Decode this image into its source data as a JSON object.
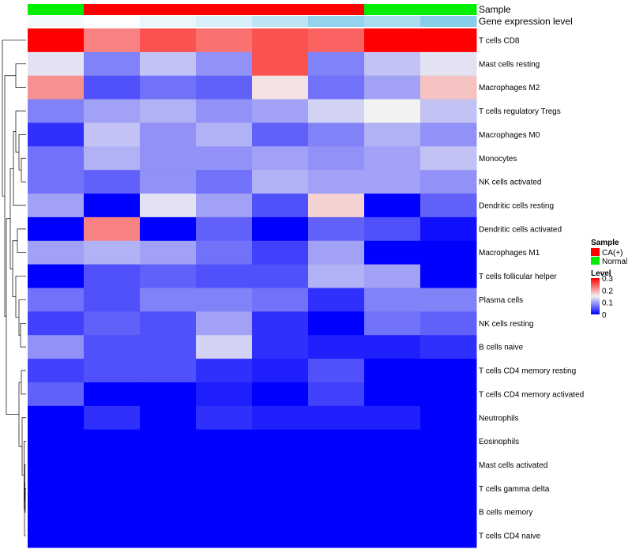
{
  "chart_data": {
    "type": "heatmap",
    "annotation_labels": {
      "sample": "Sample",
      "gene_expression": "Gene expression level"
    },
    "columns": [
      {
        "sample": "Normal",
        "gene_expression": 0.1
      },
      {
        "sample": "CA(+)",
        "gene_expression": 0.02
      },
      {
        "sample": "CA(+)",
        "gene_expression": 0.18
      },
      {
        "sample": "CA(+)",
        "gene_expression": 0.32
      },
      {
        "sample": "CA(+)",
        "gene_expression": 0.55
      },
      {
        "sample": "CA(+)",
        "gene_expression": 0.9
      },
      {
        "sample": "Normal",
        "gene_expression": 0.7
      },
      {
        "sample": "Normal",
        "gene_expression": 1.0
      }
    ],
    "rows": [
      "T cells CD8",
      "Mast cells resting",
      "Macrophages M2",
      "T cells regulatory  Tregs",
      "Macrophages M0",
      "Monocytes",
      "NK cells activated",
      "Dendritic cells resting",
      "Dendritic cells activated",
      "Macrophages M1",
      "T cells follicular helper",
      "Plasma cells",
      "NK cells resting",
      "B cells naive",
      "T cells CD4 memory resting",
      "T cells CD4 memory activated",
      "Neutrophils",
      "Eosinophils",
      "Mast cells activated",
      "T cells gamma delta",
      "B cells memory",
      "T cells CD4 naive"
    ],
    "values": [
      [
        0.3,
        0.22,
        0.25,
        0.23,
        0.25,
        0.24,
        0.3,
        0.3
      ],
      [
        0.14,
        0.08,
        0.12,
        0.09,
        0.25,
        0.08,
        0.12,
        0.14
      ],
      [
        0.21,
        0.05,
        0.07,
        0.06,
        0.16,
        0.07,
        0.1,
        0.18
      ],
      [
        0.08,
        0.1,
        0.11,
        0.09,
        0.1,
        0.13,
        0.15,
        0.12
      ],
      [
        0.03,
        0.12,
        0.09,
        0.11,
        0.06,
        0.08,
        0.11,
        0.09
      ],
      [
        0.07,
        0.11,
        0.09,
        0.09,
        0.1,
        0.09,
        0.1,
        0.12
      ],
      [
        0.07,
        0.06,
        0.09,
        0.07,
        0.11,
        0.1,
        0.1,
        0.09
      ],
      [
        0.1,
        0.0,
        0.14,
        0.1,
        0.05,
        0.17,
        0.0,
        0.06
      ],
      [
        0.0,
        0.22,
        0.0,
        0.06,
        0.0,
        0.06,
        0.05,
        0.01
      ],
      [
        0.1,
        0.11,
        0.1,
        0.07,
        0.04,
        0.1,
        0.0,
        0.0
      ],
      [
        0.0,
        0.05,
        0.06,
        0.05,
        0.05,
        0.11,
        0.1,
        0.0
      ],
      [
        0.07,
        0.05,
        0.08,
        0.08,
        0.07,
        0.03,
        0.08,
        0.08
      ],
      [
        0.04,
        0.06,
        0.05,
        0.1,
        0.03,
        0.0,
        0.07,
        0.06
      ],
      [
        0.09,
        0.05,
        0.05,
        0.13,
        0.03,
        0.02,
        0.02,
        0.03
      ],
      [
        0.04,
        0.05,
        0.05,
        0.03,
        0.02,
        0.05,
        0.0,
        0.0
      ],
      [
        0.06,
        0.0,
        0.0,
        0.02,
        0.0,
        0.04,
        0.0,
        0.0
      ],
      [
        0.0,
        0.03,
        0.0,
        0.03,
        0.02,
        0.02,
        0.02,
        0.0
      ],
      [
        0.0,
        0.0,
        0.0,
        0.0,
        0.0,
        0.0,
        0.0,
        0.0
      ],
      [
        0.0,
        0.0,
        0.0,
        0.0,
        0.0,
        0.0,
        0.0,
        0.0
      ],
      [
        0.0,
        0.0,
        0.0,
        0.0,
        0.0,
        0.0,
        0.0,
        0.0
      ],
      [
        0.0,
        0.0,
        0.0,
        0.0,
        0.0,
        0.0,
        0.0,
        0.0
      ],
      [
        0.0,
        0.0,
        0.0,
        0.0,
        0.0,
        0.0,
        0.0,
        0.0
      ]
    ],
    "color_scale": {
      "stops": [
        {
          "value": 0.0,
          "color": "#0000ff"
        },
        {
          "value": 0.15,
          "color": "#f2f2f2"
        },
        {
          "value": 0.3,
          "color": "#ff0000"
        }
      ],
      "range": [
        0,
        0.3
      ]
    },
    "gene_expression_scale": {
      "low": "#ffffff",
      "high": "#87ceeb"
    },
    "sample_colors": {
      "CA(+)": "#ff0000",
      "Normal": "#00ee00"
    },
    "legend": {
      "sample_title": "Sample",
      "sample_entries": [
        "CA(+)",
        "Normal"
      ],
      "level_title": "Level",
      "level_ticks": [
        "0.3",
        "0.2",
        "0.1",
        "0"
      ],
      "placement": "right"
    },
    "dendrogram_side": "left"
  }
}
